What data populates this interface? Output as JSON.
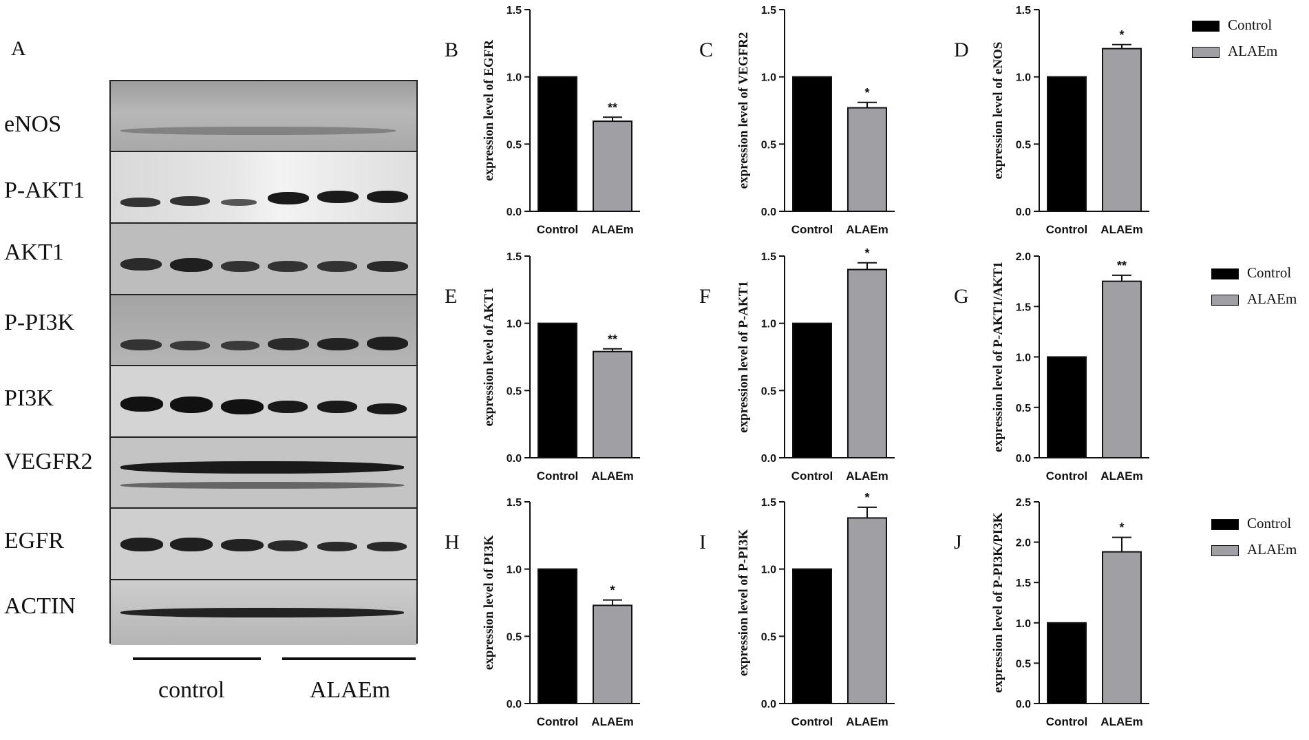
{
  "figure": {
    "blot_panel": {
      "letter": "A",
      "rows": [
        "eNOS",
        "P-AKT1",
        "AKT1",
        "P-PI3K",
        "PI3K",
        "VEGFR2",
        "EGFR",
        "ACTIN"
      ],
      "groups": [
        "control",
        "ALAEm"
      ]
    },
    "legends": [
      {
        "items": [
          {
            "label": "Control",
            "color": "#000000"
          },
          {
            "label": "ALAEm",
            "color": "#a0a0a4"
          }
        ]
      },
      {
        "items": [
          {
            "label": "Control",
            "color": "#000000"
          },
          {
            "label": "ALAEm",
            "color": "#a0a0a4"
          }
        ]
      },
      {
        "items": [
          {
            "label": "Control",
            "color": "#000000"
          },
          {
            "label": "ALAEm",
            "color": "#a0a0a4"
          }
        ]
      }
    ]
  },
  "chart_data": [
    {
      "panel": "B",
      "type": "bar",
      "categories": [
        "Control",
        "ALAEm"
      ],
      "values": [
        1.0,
        0.67
      ],
      "errors": [
        0,
        0.03
      ],
      "significance": [
        "",
        "**"
      ],
      "ylabel": "expression level of EGFR",
      "ylim": [
        0,
        1.5
      ],
      "yticks": [
        "0.0",
        "0.5",
        "1.0",
        "1.5"
      ],
      "colors": [
        "#000000",
        "#a0a0a4"
      ]
    },
    {
      "panel": "C",
      "type": "bar",
      "categories": [
        "Control",
        "ALAEm"
      ],
      "values": [
        1.0,
        0.77
      ],
      "errors": [
        0,
        0.04
      ],
      "significance": [
        "",
        "*"
      ],
      "ylabel": "expression level of  VEGFR2",
      "ylim": [
        0,
        1.5
      ],
      "yticks": [
        "0.0",
        "0.5",
        "1.0",
        "1.5"
      ],
      "colors": [
        "#000000",
        "#a0a0a4"
      ]
    },
    {
      "panel": "D",
      "type": "bar",
      "categories": [
        "Control",
        "ALAEm"
      ],
      "values": [
        1.0,
        1.21
      ],
      "errors": [
        0,
        0.03
      ],
      "significance": [
        "",
        "*"
      ],
      "ylabel": "expression level of eNOS",
      "ylim": [
        0,
        1.5
      ],
      "yticks": [
        "0.0",
        "0.5",
        "1.0",
        "1.5"
      ],
      "colors": [
        "#000000",
        "#a0a0a4"
      ]
    },
    {
      "panel": "E",
      "type": "bar",
      "categories": [
        "Control",
        "ALAEm"
      ],
      "values": [
        1.0,
        0.79
      ],
      "errors": [
        0,
        0.02
      ],
      "significance": [
        "",
        "**"
      ],
      "ylabel": "expression level of AKT1",
      "ylim": [
        0,
        1.5
      ],
      "yticks": [
        "0.0",
        "0.5",
        "1.0",
        "1.5"
      ],
      "colors": [
        "#000000",
        "#a0a0a4"
      ]
    },
    {
      "panel": "F",
      "type": "bar",
      "categories": [
        "Control",
        "ALAEm"
      ],
      "values": [
        1.0,
        1.4
      ],
      "errors": [
        0,
        0.05
      ],
      "significance": [
        "",
        "*"
      ],
      "ylabel": "expression level of P-AKT1",
      "ylim": [
        0,
        1.5
      ],
      "yticks": [
        "0.0",
        "0.5",
        "1.0",
        "1.5"
      ],
      "colors": [
        "#000000",
        "#a0a0a4"
      ]
    },
    {
      "panel": "G",
      "type": "bar",
      "categories": [
        "Control",
        "ALAEm"
      ],
      "values": [
        1.0,
        1.75
      ],
      "errors": [
        0,
        0.06
      ],
      "significance": [
        "",
        "**"
      ],
      "ylabel": "expression level of P-AKT1/AKT1",
      "ylim": [
        0,
        2.0
      ],
      "yticks": [
        "0.0",
        "0.5",
        "1.0",
        "1.5",
        "2.0"
      ],
      "colors": [
        "#000000",
        "#a0a0a4"
      ]
    },
    {
      "panel": "H",
      "type": "bar",
      "categories": [
        "Control",
        "ALAEm"
      ],
      "values": [
        1.0,
        0.73
      ],
      "errors": [
        0,
        0.04
      ],
      "significance": [
        "",
        "*"
      ],
      "ylabel": "expression level of PI3K",
      "ylim": [
        0,
        1.5
      ],
      "yticks": [
        "0.0",
        "0.5",
        "1.0",
        "1.5"
      ],
      "colors": [
        "#000000",
        "#a0a0a4"
      ]
    },
    {
      "panel": "I",
      "type": "bar",
      "categories": [
        "Control",
        "ALAEm"
      ],
      "values": [
        1.0,
        1.38
      ],
      "errors": [
        0,
        0.08
      ],
      "significance": [
        "",
        "*"
      ],
      "ylabel": "expression level of P-PI3K",
      "ylim": [
        0,
        1.5
      ],
      "yticks": [
        "0.0",
        "0.5",
        "1.0",
        "1.5"
      ],
      "colors": [
        "#000000",
        "#a0a0a4"
      ]
    },
    {
      "panel": "J",
      "type": "bar",
      "categories": [
        "Control",
        "ALAEm"
      ],
      "values": [
        1.0,
        1.88
      ],
      "errors": [
        0,
        0.18
      ],
      "significance": [
        "",
        "*"
      ],
      "ylabel": "expression level of P-PI3K/PI3K",
      "ylim": [
        0,
        2.5
      ],
      "yticks": [
        "0.0",
        "0.5",
        "1.0",
        "1.5",
        "2.0",
        "2.5"
      ],
      "colors": [
        "#000000",
        "#a0a0a4"
      ]
    }
  ]
}
